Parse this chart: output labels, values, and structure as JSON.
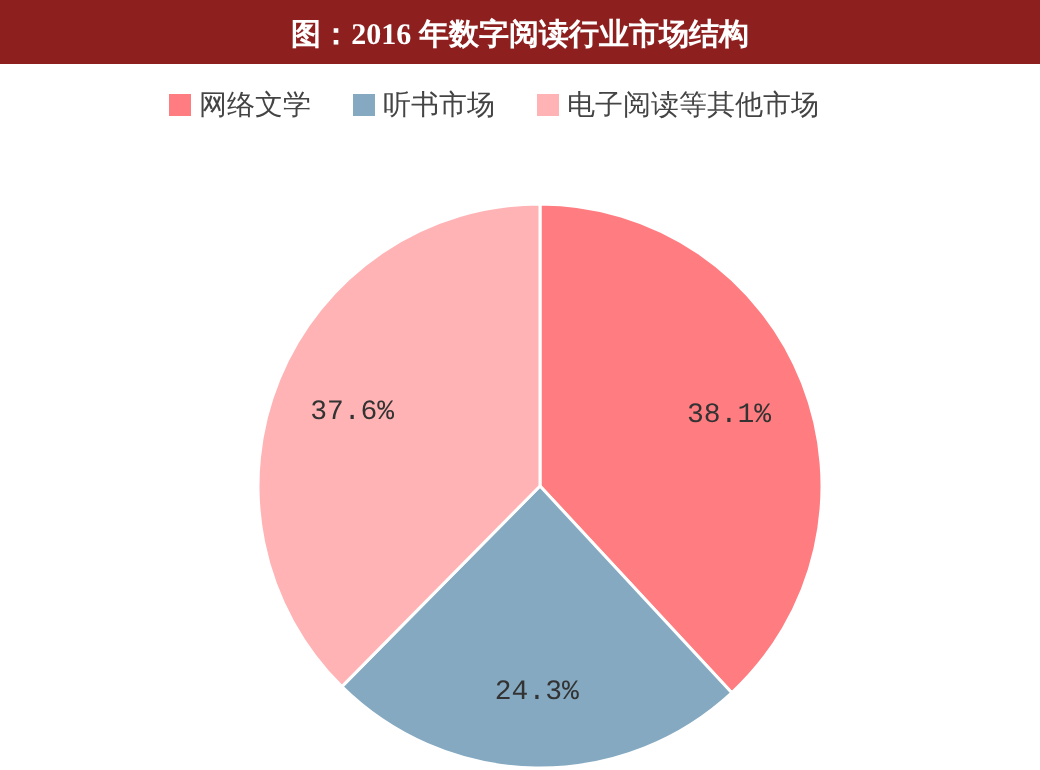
{
  "chart_data": {
    "type": "pie",
    "title": "图：2016 年数字阅读行业市场结构",
    "categories": [
      "网络文学",
      "听书市场",
      "电子阅读等其他市场"
    ],
    "values": [
      38.1,
      24.3,
      37.6
    ],
    "value_labels": [
      "38.1%",
      "24.3%",
      "37.6%"
    ],
    "colors": [
      "#ff7c80",
      "#84a9c1",
      "#ffb3b5"
    ],
    "legend": "top"
  }
}
